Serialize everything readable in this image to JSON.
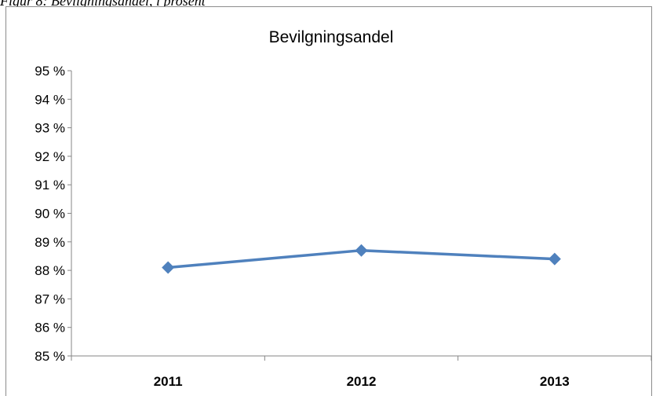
{
  "caption": "Figur 8: Bevilgningsandel, i prosent",
  "chart_data": {
    "type": "line",
    "title": "Bevilgningsandel",
    "categories": [
      "2011",
      "2012",
      "2013"
    ],
    "series": [
      {
        "values": [
          88.1,
          88.7,
          88.4
        ],
        "color": "#4f81bd",
        "marker": "diamond"
      }
    ],
    "ylim": [
      85,
      95
    ],
    "yticks": [
      85,
      86,
      87,
      88,
      89,
      90,
      91,
      92,
      93,
      94,
      95
    ],
    "ytick_labels": [
      "85 %",
      "86 %",
      "87 %",
      "88 %",
      "89 %",
      "90 %",
      "91 %",
      "92 %",
      "93 %",
      "94 %",
      "95 %"
    ],
    "xlabel": "",
    "ylabel": "",
    "grid": false,
    "legend": "none"
  }
}
